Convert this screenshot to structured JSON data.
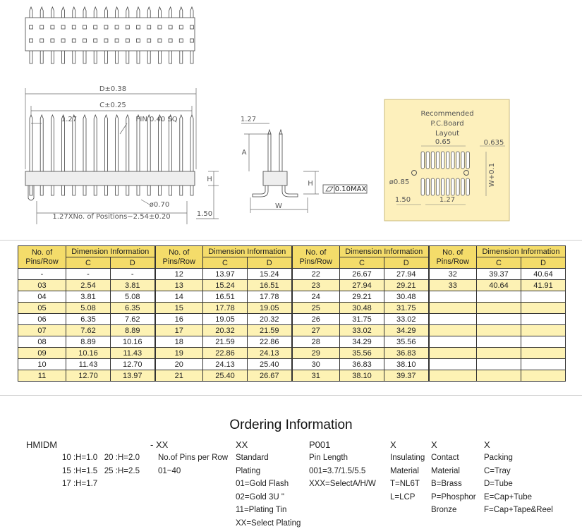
{
  "drawing": {
    "labels": {
      "d": "D±0.38",
      "c": "C±0.25",
      "pitch": "1.27",
      "pin": "PIN 0.40 SQ",
      "dia": "ø0.70",
      "positions": "1.27XNo. of Positions−2.54±0.20",
      "tail": "1.50",
      "h": "H",
      "side_pitch": "1.27",
      "a": "A",
      "side_h": "H",
      "w": "W",
      "flat": "0.10MAX"
    }
  },
  "pcb": {
    "title": [
      "Recommended",
      "P.C.Board",
      "Layout"
    ],
    "pad": "0.65",
    "row": "0.635",
    "hole": "ø0.85",
    "edge": "1.50",
    "pitch": "1.27",
    "width": "W+0.1"
  },
  "table": {
    "headers": {
      "pins": [
        "No. of",
        "Pins/Row"
      ],
      "dim": "Dimension Information",
      "c": "C",
      "d": "D"
    },
    "groups": [
      [
        [
          "-",
          "-",
          "-"
        ],
        [
          "03",
          "2.54",
          "3.81"
        ],
        [
          "04",
          "3.81",
          "5.08"
        ],
        [
          "05",
          "5.08",
          "6.35"
        ],
        [
          "06",
          "6.35",
          "7.62"
        ],
        [
          "07",
          "7.62",
          "8.89"
        ],
        [
          "08",
          "8.89",
          "10.16"
        ],
        [
          "09",
          "10.16",
          "11.43"
        ],
        [
          "10",
          "11.43",
          "12.70"
        ],
        [
          "11",
          "12.70",
          "13.97"
        ]
      ],
      [
        [
          "12",
          "13.97",
          "15.24"
        ],
        [
          "13",
          "15.24",
          "16.51"
        ],
        [
          "14",
          "16.51",
          "17.78"
        ],
        [
          "15",
          "17.78",
          "19.05"
        ],
        [
          "16",
          "19.05",
          "20.32"
        ],
        [
          "17",
          "20.32",
          "21.59"
        ],
        [
          "18",
          "21.59",
          "22.86"
        ],
        [
          "19",
          "22.86",
          "24.13"
        ],
        [
          "20",
          "24.13",
          "25.40"
        ],
        [
          "21",
          "25.40",
          "26.67"
        ]
      ],
      [
        [
          "22",
          "26.67",
          "27.94"
        ],
        [
          "23",
          "27.94",
          "29.21"
        ],
        [
          "24",
          "29.21",
          "30.48"
        ],
        [
          "25",
          "30.48",
          "31.75"
        ],
        [
          "26",
          "31.75",
          "33.02"
        ],
        [
          "27",
          "33.02",
          "34.29"
        ],
        [
          "28",
          "34.29",
          "35.56"
        ],
        [
          "29",
          "35.56",
          "36.83"
        ],
        [
          "30",
          "36.83",
          "38.10"
        ],
        [
          "31",
          "38.10",
          "39.37"
        ]
      ],
      [
        [
          "32",
          "39.37",
          "40.64"
        ],
        [
          "33",
          "40.64",
          "41.91"
        ]
      ]
    ]
  },
  "ordering": {
    "title": "Ordering Information",
    "codes": [
      "HMIDM",
      "- XX",
      "XX",
      "P001",
      "X",
      "X",
      "X"
    ],
    "columns": [
      [
        "10 :H=1.0   20 :H=2.0",
        "15 :H=1.5   25 :H=2.5",
        "17 :H=1.7"
      ],
      [
        "No.of Pins per Row",
        "01~40"
      ],
      [
        "Standard",
        "Plating",
        "01=Gold Flash",
        "02=Gold 3U \"",
        "11=Plating Tin",
        "XX=Select Plating"
      ],
      [
        "Pin Length",
        "001=3.7/1.5/5.5",
        "XXX=SelectA/H/W"
      ],
      [
        "Insulating",
        "Material",
        "T=NL6T",
        "L=LCP"
      ],
      [
        "Contact",
        "Material",
        "B=Brass",
        "P=Phosphor",
        "Bronze"
      ],
      [
        "Packing",
        "C=Tray",
        "D=Tube",
        "E=Cap+Tube",
        "F=Cap+Tape&Reel"
      ]
    ]
  }
}
